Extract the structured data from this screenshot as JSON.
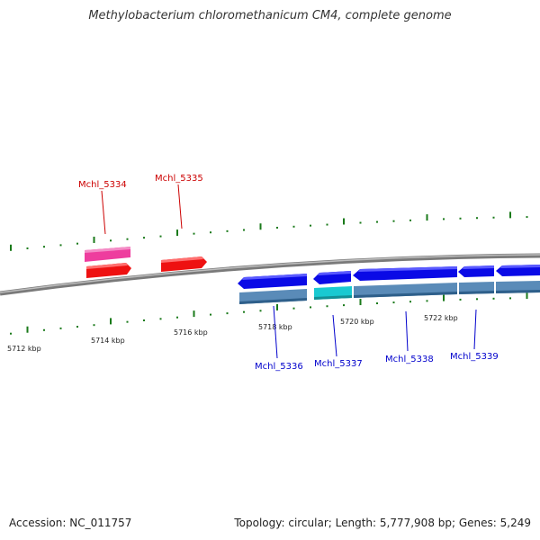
{
  "title": "Methylobacterium chloromethanicum CM4, complete genome",
  "footer": {
    "accession": "Accession: NC_011757",
    "summary": "Topology: circular; Length: 5,777,908 bp; Genes: 5,249"
  },
  "colors": {
    "backbone": "#808080",
    "tick": "#1a7a1a",
    "label_top": "#cc0000",
    "label_bottom": "#0000cc",
    "pink_gene": "#ee3d9e",
    "red_gene": "#ee1111",
    "blue_gene": "#0a0ae6",
    "steel_gene": "#5a8bb8",
    "cyan_gene": "#19c9d1"
  },
  "scale_labels": [
    "5712 kbp",
    "5714 kbp",
    "5716 kbp",
    "5718 kbp",
    "5720 kbp",
    "5722 kbp"
  ],
  "gene_labels_top": [
    "Mchl_5334",
    "Mchl_5335"
  ],
  "gene_labels_bottom": [
    "Mchl_5336",
    "Mchl_5337",
    "Mchl_5338",
    "Mchl_5339"
  ]
}
